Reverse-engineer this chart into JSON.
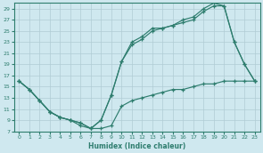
{
  "xlabel": "Humidex (Indice chaleur)",
  "bg_color": "#cfe8ef",
  "grid_color": "#b0ccd4",
  "line_color": "#2e7d6e",
  "xlim": [
    -0.5,
    23.5
  ],
  "ylim": [
    7,
    30
  ],
  "yticks": [
    7,
    9,
    11,
    13,
    15,
    17,
    19,
    21,
    23,
    25,
    27,
    29
  ],
  "xticks": [
    0,
    1,
    2,
    3,
    4,
    5,
    6,
    7,
    8,
    9,
    10,
    11,
    12,
    13,
    14,
    15,
    16,
    17,
    18,
    19,
    20,
    21,
    22,
    23
  ],
  "line_top_x": [
    0,
    1,
    2,
    3,
    4,
    5,
    6,
    7,
    8,
    9,
    10,
    11,
    12,
    13,
    14,
    15,
    16,
    17,
    18,
    19,
    20,
    21,
    22,
    23
  ],
  "line_top_y": [
    16.0,
    14.5,
    12.5,
    10.5,
    9.5,
    9.0,
    8.5,
    7.5,
    9.0,
    13.5,
    19.5,
    23.0,
    24.0,
    25.5,
    25.5,
    26.0,
    27.0,
    27.5,
    29.0,
    30.0,
    29.5,
    23.0,
    19.0,
    16.0
  ],
  "line_mid_x": [
    0,
    1,
    2,
    3,
    4,
    5,
    6,
    7,
    8,
    9,
    10,
    11,
    12,
    13,
    14,
    15,
    16,
    17,
    18,
    19,
    20,
    21,
    22,
    23
  ],
  "line_mid_y": [
    16.0,
    14.5,
    12.5,
    10.5,
    9.5,
    9.0,
    8.5,
    7.5,
    9.0,
    13.5,
    19.5,
    22.5,
    23.5,
    25.0,
    25.5,
    26.0,
    26.5,
    27.0,
    28.5,
    29.5,
    29.5,
    23.0,
    19.0,
    16.0
  ],
  "line_bot_x": [
    0,
    1,
    2,
    3,
    4,
    5,
    6,
    7,
    8,
    9,
    10,
    11,
    12,
    13,
    14,
    15,
    16,
    17,
    18,
    19,
    20,
    21,
    22,
    23
  ],
  "line_bot_y": [
    16.0,
    14.5,
    12.5,
    10.5,
    9.5,
    9.0,
    8.0,
    7.5,
    7.5,
    8.0,
    11.5,
    12.5,
    13.0,
    13.5,
    14.0,
    14.5,
    14.5,
    15.0,
    15.5,
    15.5,
    16.0,
    16.0,
    16.0,
    16.0
  ]
}
